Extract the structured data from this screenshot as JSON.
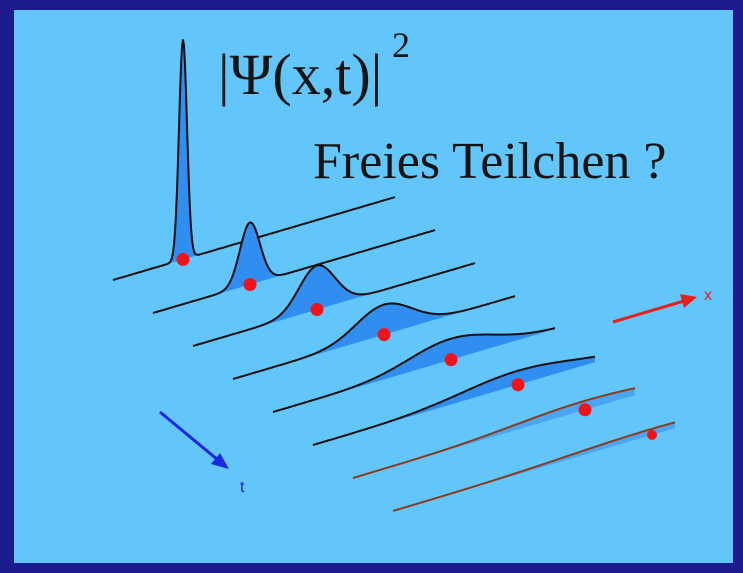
{
  "formula": {
    "expression": "|Ψ(x,t)|",
    "exponent": "2"
  },
  "heading": "Freies Teilchen ?",
  "axes": {
    "x": "x",
    "t": "t"
  }
}
